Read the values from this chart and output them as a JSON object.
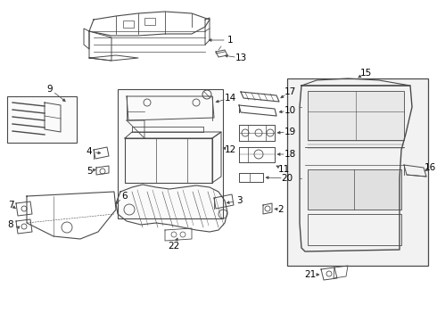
{
  "bg_color": "#ffffff",
  "line_color": "#4a4a4a",
  "text_color": "#000000",
  "fig_w": 4.9,
  "fig_h": 3.6,
  "dpi": 100
}
